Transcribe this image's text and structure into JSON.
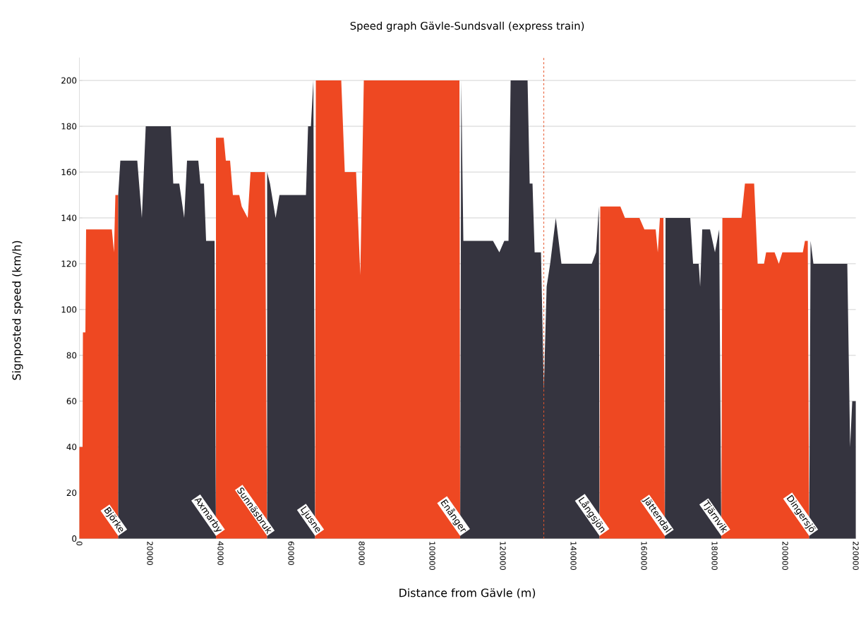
{
  "chart_data": {
    "type": "area",
    "title": "Speed graph Gävle-Sundsvall (express train)",
    "xlabel": "Distance from Gävle (m)",
    "ylabel": "Signposted speed (km/h)",
    "xlim": [
      0,
      220000
    ],
    "ylim": [
      0,
      210
    ],
    "xticks": [
      0,
      20000,
      40000,
      60000,
      80000,
      100000,
      120000,
      140000,
      160000,
      180000,
      200000,
      220000
    ],
    "yticks": [
      0,
      20,
      40,
      60,
      80,
      100,
      120,
      140,
      160,
      180,
      200
    ],
    "grid": "y",
    "series": [
      {
        "color": "#ee4822",
        "x": [
          0,
          0,
          900,
          1000,
          1700,
          1900,
          9200,
          9800,
          10200,
          11000,
          11000
        ],
        "values": [
          0,
          40,
          40,
          90,
          90,
          135,
          135,
          125,
          150,
          150,
          0
        ]
      },
      {
        "color": "#35343f",
        "x": [
          11000,
          11000,
          11600,
          16400,
          17700,
          18800,
          25900,
          26600,
          28300,
          29700,
          30500,
          33700,
          34300,
          35300,
          35900,
          38300,
          38700
        ],
        "values": [
          0,
          150,
          165,
          165,
          140,
          180,
          180,
          155,
          155,
          140,
          165,
          165,
          155,
          155,
          130,
          130,
          0
        ]
      },
      {
        "color": "#ee4822",
        "x": [
          38700,
          38700,
          40900,
          41500,
          42700,
          43500,
          45300,
          46000,
          47700,
          48500,
          52600,
          53200
        ],
        "values": [
          0,
          175,
          175,
          165,
          165,
          150,
          150,
          145,
          140,
          160,
          160,
          0
        ]
      },
      {
        "color": "#35343f",
        "x": [
          53200,
          53200,
          54000,
          55600,
          56700,
          64200,
          64800,
          65600,
          66300,
          66800
        ],
        "values": [
          0,
          160,
          155,
          140,
          150,
          150,
          180,
          180,
          200,
          0
        ]
      },
      {
        "color": "#ee4822",
        "x": [
          66800,
          67000,
          74200,
          75200,
          78400,
          79600,
          80600,
          107700,
          107900
        ],
        "values": [
          0,
          200,
          200,
          160,
          160,
          115,
          200,
          200,
          0
        ]
      },
      {
        "color": "#35343f",
        "x": [
          107900,
          108200,
          108800,
          117200,
          119000,
          120400,
          121600,
          122200,
          127000,
          127600,
          128400,
          129000,
          130800,
          131600,
          132400,
          133400,
          134200,
          135000,
          135800,
          136600,
          145200,
          146400,
          147200,
          147400
        ],
        "values": [
          0,
          200,
          130,
          130,
          125,
          130,
          130,
          200,
          200,
          155,
          155,
          125,
          125,
          65,
          110,
          120,
          130,
          140,
          130,
          120,
          120,
          125,
          145,
          0
        ]
      },
      {
        "color": "#ee4822",
        "x": [
          147400,
          147600,
          153300,
          154600,
          158700,
          160100,
          163300,
          163900,
          164500,
          165500,
          165900
        ],
        "values": [
          0,
          145,
          145,
          140,
          140,
          135,
          135,
          125,
          140,
          140,
          0
        ]
      },
      {
        "color": "#35343f",
        "x": [
          165900,
          166100,
          173100,
          173900,
          175500,
          175900,
          176500,
          178700,
          180100,
          181300,
          181900
        ],
        "values": [
          0,
          140,
          140,
          120,
          120,
          110,
          135,
          135,
          125,
          135,
          0
        ]
      },
      {
        "color": "#ee4822",
        "x": [
          181900,
          182200,
          187600,
          188600,
          191200,
          192200,
          194000,
          194600,
          197000,
          198200,
          199200,
          205000,
          205600,
          206400,
          206800
        ],
        "values": [
          0,
          140,
          140,
          155,
          155,
          120,
          120,
          125,
          125,
          120,
          125,
          125,
          130,
          130,
          0
        ]
      },
      {
        "color": "#35343f",
        "x": [
          206800,
          207200,
          208000,
          217600,
          218400,
          219000,
          220000,
          220000
        ],
        "values": [
          0,
          130,
          120,
          120,
          40,
          60,
          60,
          0
        ]
      }
    ],
    "ref_lines": [
      {
        "axis": "x",
        "value": 131600,
        "color": "#e8552b",
        "line_style": "dashed"
      }
    ],
    "annotations": [
      {
        "text": "Björke",
        "x": 11000,
        "y": 0
      },
      {
        "text": "Axmarby",
        "x": 38700,
        "y": 0
      },
      {
        "text": "Sunnäsbruk",
        "x": 53200,
        "y": 0
      },
      {
        "text": "Ljusne",
        "x": 66800,
        "y": 0
      },
      {
        "text": "Enånger",
        "x": 107900,
        "y": 0
      },
      {
        "text": "Långsjön",
        "x": 147400,
        "y": 0
      },
      {
        "text": "Jättendal",
        "x": 165900,
        "y": 0
      },
      {
        "text": "Tjärnvik",
        "x": 181900,
        "y": 0
      },
      {
        "text": "Dingersjö",
        "x": 206800,
        "y": 0
      }
    ]
  }
}
